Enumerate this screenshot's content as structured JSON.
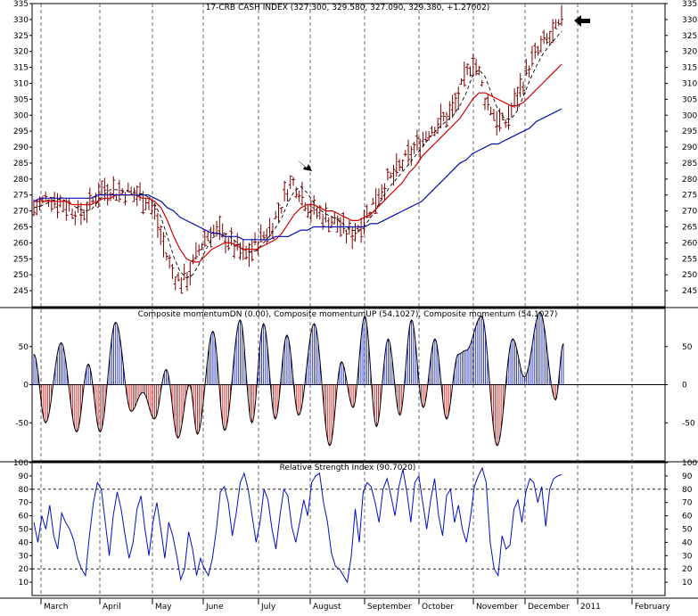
{
  "chart_data": [
    {
      "type": "bar",
      "subtype": "ohlc-price-with-moving-averages",
      "title": "17-CRB CASH INDEX (327.300, 329.580, 327.090, 329.380, +1.27002)",
      "ylim": [
        240,
        335
      ],
      "yticks": [
        245,
        250,
        255,
        260,
        265,
        270,
        275,
        280,
        285,
        290,
        295,
        300,
        305,
        310,
        315,
        320,
        325,
        330,
        335
      ],
      "xcategories": [
        "March",
        "April",
        "May",
        "June",
        "July",
        "August",
        "September",
        "October",
        "November",
        "December",
        "2011",
        "February"
      ],
      "grid": "vertical dashed",
      "annotations": [
        "arrow near August high (~280)",
        "arrow at latest close (~329)"
      ],
      "series": [
        {
          "values": [
            271,
            272,
            274,
            274,
            273,
            272,
            271,
            269,
            270,
            272,
            276,
            277,
            277,
            276,
            276,
            276,
            275,
            275,
            273,
            269,
            262,
            255,
            250,
            248,
            249,
            253,
            258,
            262,
            264,
            263,
            262,
            260,
            258,
            256,
            257,
            260,
            262,
            264,
            268,
            272,
            278,
            279,
            276,
            272,
            270,
            269,
            268,
            267,
            266,
            263,
            263,
            265,
            268,
            271,
            275,
            278,
            280,
            282,
            285,
            287,
            290,
            292,
            295,
            297,
            298,
            300,
            302,
            307,
            312,
            318,
            313,
            305,
            302,
            298,
            297,
            301,
            306,
            311,
            316,
            319,
            322,
            324,
            326,
            329
          ]
        },
        {
          "values": [
            273,
            273,
            273,
            273,
            273,
            273,
            272,
            272,
            272,
            272,
            273,
            274,
            274,
            275,
            275,
            275,
            275,
            274,
            274,
            273,
            271,
            267,
            262,
            258,
            255,
            254,
            254,
            256,
            258,
            259,
            260,
            260,
            259,
            258,
            258,
            258,
            259,
            260,
            261,
            263,
            266,
            269,
            271,
            272,
            272,
            271,
            270,
            270,
            269,
            268,
            267,
            267,
            268,
            269,
            271,
            273,
            275,
            277,
            279,
            282,
            284,
            287,
            289,
            291,
            293,
            295,
            297,
            299,
            302,
            305,
            307,
            307,
            306,
            305,
            304,
            303,
            303,
            304,
            306,
            308,
            310,
            312,
            314,
            316
          ]
        },
        {
          "values": [
            273,
            274,
            274,
            274,
            274,
            274,
            274,
            274,
            274,
            274,
            275,
            275,
            275,
            275,
            275,
            275,
            275,
            275,
            275,
            274,
            273,
            271,
            270,
            268,
            267,
            266,
            265,
            264,
            263,
            263,
            262,
            262,
            262,
            261,
            261,
            261,
            261,
            261,
            262,
            262,
            262,
            263,
            264,
            264,
            265,
            265,
            265,
            265,
            265,
            265,
            265,
            265,
            265,
            266,
            266,
            267,
            268,
            269,
            270,
            271,
            272,
            273,
            275,
            277,
            279,
            281,
            283,
            285,
            286,
            288,
            289,
            290,
            291,
            291,
            292,
            293,
            294,
            295,
            296,
            298,
            299,
            300,
            301,
            302
          ]
        }
      ]
    },
    {
      "type": "bar",
      "subtype": "momentum-oscillator",
      "title": "Composite momentumDN (0.00), Composite momentumUP (54.1027), Composite momentum (54.1027)",
      "ylim": [
        -100,
        100
      ],
      "yticks": [
        -50,
        0,
        50
      ],
      "series": [
        {
          "name": "Composite momentumDN",
          "values": [
            0.0
          ]
        },
        {
          "name": "Composite momentumUP",
          "values": [
            54.1027
          ]
        },
        {
          "name": "Composite momentum",
          "values": [
            54.1027
          ]
        }
      ],
      "peaks_and_troughs": [
        {
          "x_index": 0,
          "value": 40
        },
        {
          "x_index": 3,
          "value": -50
        },
        {
          "x_index": 7,
          "value": 55
        },
        {
          "x_index": 11,
          "value": -62
        },
        {
          "x_index": 14,
          "value": 27
        },
        {
          "x_index": 17,
          "value": -62
        },
        {
          "x_index": 21,
          "value": 82
        },
        {
          "x_index": 25,
          "value": -35
        },
        {
          "x_index": 28,
          "value": -10
        },
        {
          "x_index": 31,
          "value": -45
        },
        {
          "x_index": 34,
          "value": 20
        },
        {
          "x_index": 37,
          "value": -70
        },
        {
          "x_index": 40,
          "value": 0
        },
        {
          "x_index": 42,
          "value": -65
        },
        {
          "x_index": 46,
          "value": 70
        },
        {
          "x_index": 49,
          "value": -60
        },
        {
          "x_index": 53,
          "value": 85
        },
        {
          "x_index": 56,
          "value": -50
        },
        {
          "x_index": 59,
          "value": 80
        },
        {
          "x_index": 62,
          "value": -45
        },
        {
          "x_index": 65,
          "value": 65
        },
        {
          "x_index": 68,
          "value": -40
        },
        {
          "x_index": 72,
          "value": 80
        },
        {
          "x_index": 76,
          "value": -80
        },
        {
          "x_index": 79,
          "value": 30
        },
        {
          "x_index": 82,
          "value": -30
        },
        {
          "x_index": 85,
          "value": 90
        },
        {
          "x_index": 88,
          "value": -55
        },
        {
          "x_index": 91,
          "value": 60
        },
        {
          "x_index": 94,
          "value": -40
        },
        {
          "x_index": 97,
          "value": 85
        },
        {
          "x_index": 100,
          "value": -30
        },
        {
          "x_index": 103,
          "value": 60
        },
        {
          "x_index": 106,
          "value": -45
        },
        {
          "x_index": 109,
          "value": 40
        },
        {
          "x_index": 111,
          "value": 45
        },
        {
          "x_index": 115,
          "value": 90
        },
        {
          "x_index": 119,
          "value": -80
        },
        {
          "x_index": 123,
          "value": 60
        },
        {
          "x_index": 126,
          "value": 10
        },
        {
          "x_index": 130,
          "value": 95
        },
        {
          "x_index": 134,
          "value": -20
        },
        {
          "x_index": 136,
          "value": 54
        }
      ]
    },
    {
      "type": "line",
      "subtype": "relative-strength-index",
      "title": "Relative Strength Index (90.7020)",
      "ylim": [
        0,
        100
      ],
      "yticks": [
        10,
        20,
        30,
        40,
        50,
        60,
        70,
        80,
        90,
        100
      ],
      "reference_levels": [
        20,
        80
      ],
      "series": [
        {
          "name": "Relative Strength Index",
          "values": [
            55,
            40,
            60,
            50,
            68,
            45,
            35,
            62,
            55,
            50,
            42,
            28,
            20,
            15,
            45,
            70,
            85,
            80,
            55,
            30,
            60,
            78,
            65,
            45,
            28,
            40,
            65,
            75,
            50,
            30,
            55,
            70,
            50,
            28,
            55,
            45,
            30,
            12,
            20,
            48,
            35,
            15,
            28,
            20,
            15,
            28,
            50,
            78,
            82,
            70,
            45,
            62,
            85,
            92,
            80,
            60,
            40,
            55,
            80,
            72,
            50,
            35,
            60,
            80,
            75,
            52,
            40,
            55,
            72,
            60,
            85,
            90,
            92,
            70,
            55,
            32,
            22,
            20,
            15,
            10,
            30,
            65,
            40,
            78,
            85,
            82,
            70,
            55,
            80,
            88,
            75,
            60,
            82,
            95,
            78,
            55,
            85,
            90,
            70,
            50,
            72,
            88,
            60,
            45,
            75,
            80,
            55,
            68,
            50,
            40,
            58,
            82,
            90,
            96,
            85,
            40,
            20,
            15,
            45,
            35,
            38,
            65,
            72,
            55,
            78,
            88,
            85,
            70,
            82,
            52,
            80,
            88,
            90,
            91
          ]
        }
      ]
    }
  ]
}
